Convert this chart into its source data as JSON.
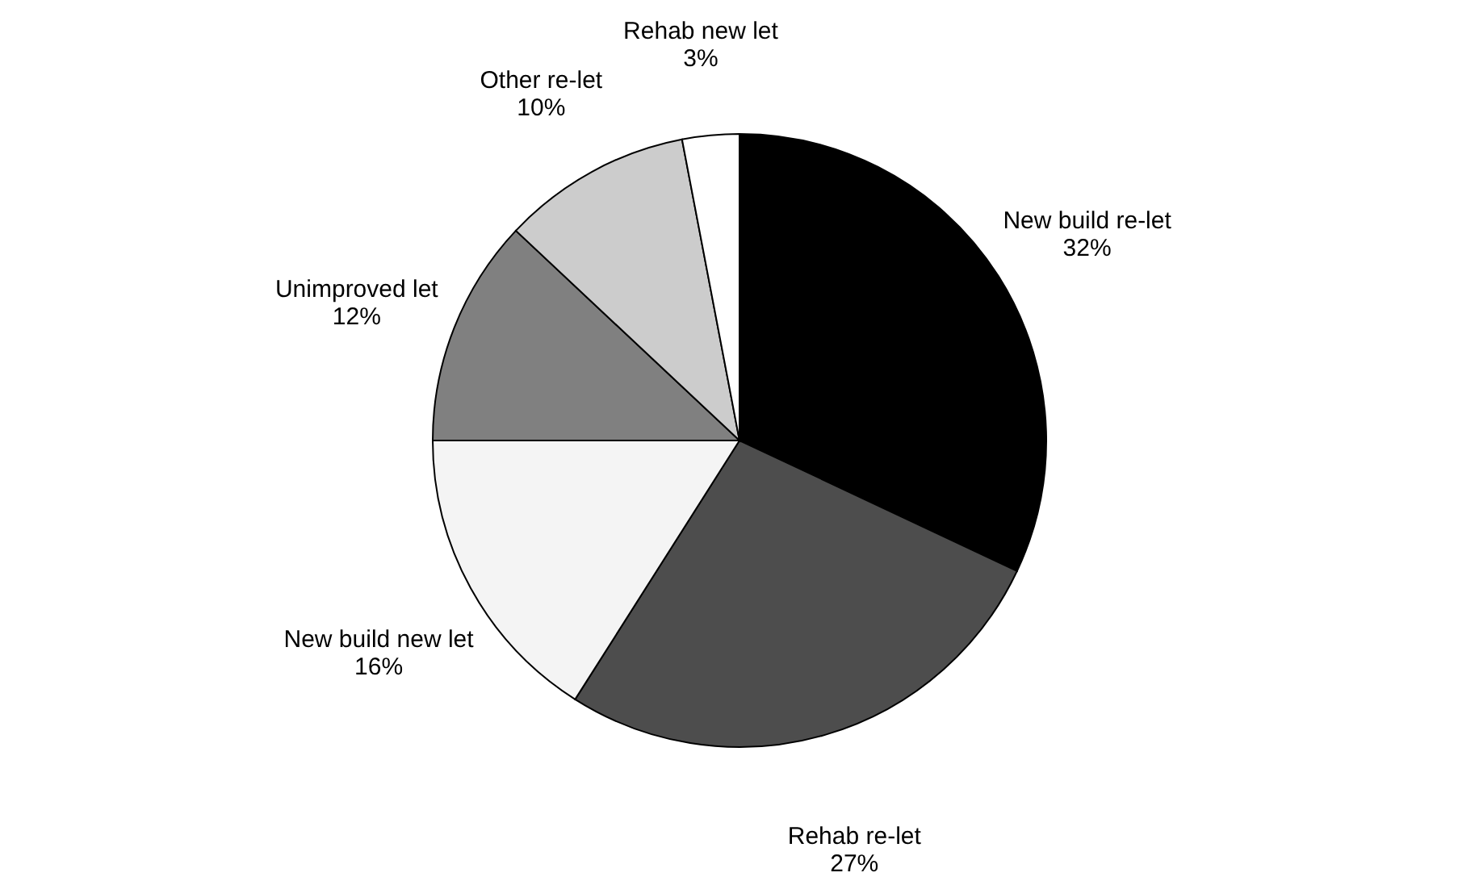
{
  "chart_data": {
    "type": "pie",
    "categories": [
      "New build re-let",
      "Rehab re-let",
      "New build new let",
      "Unimproved let",
      "Other re-let",
      "Rehab new let"
    ],
    "values": [
      32,
      27,
      16,
      12,
      10,
      3
    ],
    "value_labels": [
      "32%",
      "27%",
      "16%",
      "12%",
      "10%",
      "3%"
    ],
    "colors": [
      "#000000",
      "#4d4d4d",
      "#f4f4f4",
      "#808080",
      "#cccccc",
      "#ffffff"
    ],
    "legend": false
  }
}
